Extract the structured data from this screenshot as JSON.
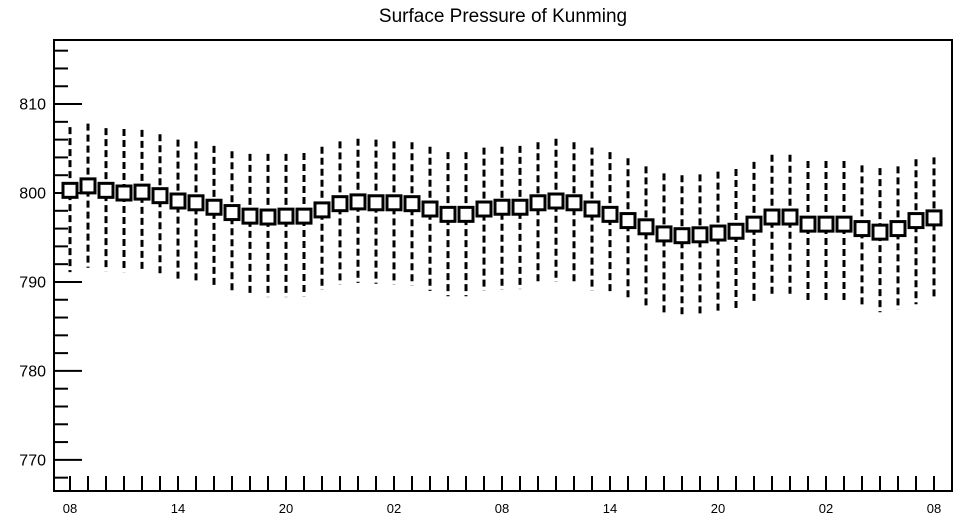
{
  "chart_data": {
    "type": "scatter",
    "title": "Surface Pressure of Kunming",
    "xlabel": "",
    "ylabel": "",
    "x": [
      8,
      9,
      10,
      11,
      12,
      13,
      14,
      15,
      16,
      17,
      18,
      19,
      20,
      21,
      22,
      23,
      0,
      1,
      2,
      3,
      4,
      5,
      6,
      7,
      8,
      9,
      10,
      11,
      12,
      13,
      14,
      15,
      16,
      17,
      18,
      19,
      20,
      21,
      22,
      23,
      0,
      1,
      2,
      3,
      4,
      5,
      6,
      7,
      8
    ],
    "x_tick_labels": [
      "08",
      "14",
      "20",
      "02",
      "08",
      "14",
      "20",
      "02",
      "08"
    ],
    "y_tick_labels": [
      "810",
      "800",
      "790",
      "780",
      "770"
    ],
    "ylim": [
      766.5,
      817.2
    ],
    "grid": false,
    "series": [
      {
        "values": [
          800.3,
          800.8,
          800.3,
          800.0,
          800.1,
          799.7,
          799.1,
          798.9,
          798.4,
          797.8,
          797.4,
          797.3,
          797.4,
          797.4,
          798.1,
          798.8,
          799.0,
          798.9,
          798.9,
          798.8,
          798.2,
          797.6,
          797.6,
          798.2,
          798.4,
          798.4,
          798.9,
          799.1,
          798.9,
          798.2,
          797.6,
          796.9,
          796.2,
          795.4,
          795.2,
          795.3,
          795.5,
          795.7,
          796.5,
          797.3,
          797.3,
          796.5,
          796.5,
          796.5,
          796.0,
          795.6,
          796.0,
          796.9,
          797.2
        ],
        "upper": [
          807.4,
          807.8,
          807.3,
          807.2,
          807.1,
          806.6,
          806.0,
          805.8,
          805.3,
          804.7,
          804.4,
          804.4,
          804.4,
          804.5,
          805.2,
          805.8,
          806.1,
          806.0,
          805.8,
          805.7,
          805.2,
          804.6,
          804.6,
          805.1,
          805.2,
          805.3,
          805.7,
          806.1,
          805.7,
          805.1,
          804.6,
          803.9,
          803.0,
          802.2,
          802.0,
          802.1,
          802.4,
          802.7,
          803.5,
          804.3,
          804.3,
          803.6,
          803.6,
          803.6,
          803.1,
          802.8,
          803.0,
          803.8,
          804.0
        ],
        "lower": [
          791.1,
          791.6,
          791.2,
          791.1,
          791.1,
          790.7,
          790.1,
          789.9,
          789.4,
          788.8,
          788.4,
          788.3,
          788.3,
          788.4,
          789.1,
          789.7,
          789.9,
          789.8,
          789.7,
          789.6,
          789.0,
          788.4,
          788.4,
          789.0,
          789.1,
          789.2,
          789.7,
          790.0,
          789.7,
          789.0,
          788.7,
          787.9,
          787.2,
          786.5,
          786.3,
          786.4,
          786.7,
          787.0,
          787.6,
          788.4,
          788.3,
          787.6,
          787.6,
          787.6,
          787.1,
          786.6,
          786.9,
          787.5,
          788.0
        ]
      }
    ],
    "colors": {
      "background": "#ffffff",
      "axis": "#000000",
      "marker_edge": "#000000",
      "marker_fill": "#ffffff",
      "error_bar": "#000000"
    }
  }
}
